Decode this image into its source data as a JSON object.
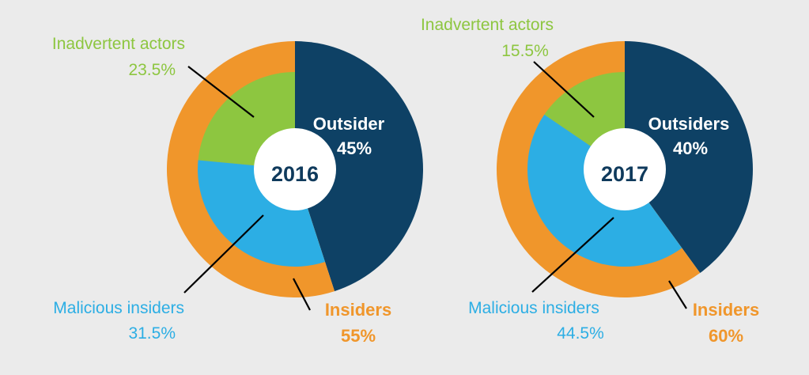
{
  "colors": {
    "background": "#ebebeb",
    "outsider": "#0e4165",
    "insider": "#f0962b",
    "inadvertent": "#8dc640",
    "malicious": "#2caee4",
    "center_text": "#0f3a5c"
  },
  "chart_data": [
    {
      "type": "pie",
      "title": "2016",
      "rings": {
        "outer": [
          {
            "name": "Outsider",
            "value": 45,
            "label": "Outsider",
            "pct": "45%",
            "color": "#0e4165"
          },
          {
            "name": "Insiders",
            "value": 55,
            "label": "Insiders",
            "pct": "55%",
            "color": "#f0962b"
          }
        ],
        "inner": [
          {
            "name": "Inadvertent actors",
            "value": 23.5,
            "label": "Inadvertent actors",
            "pct": "23.5%",
            "color": "#8dc640"
          },
          {
            "name": "Malicious insiders",
            "value": 31.5,
            "label": "Malicious insiders",
            "pct": "31.5%",
            "color": "#2caee4"
          }
        ]
      }
    },
    {
      "type": "pie",
      "title": "2017",
      "rings": {
        "outer": [
          {
            "name": "Outsiders",
            "value": 40,
            "label": "Outsiders",
            "pct": "40%",
            "color": "#0e4165"
          },
          {
            "name": "Insiders",
            "value": 60,
            "label": "Insiders",
            "pct": "60%",
            "color": "#f0962b"
          }
        ],
        "inner": [
          {
            "name": "Inadvertent actors",
            "value": 15.5,
            "label": "Inadvertent actors",
            "pct": "15.5%",
            "color": "#8dc640"
          },
          {
            "name": "Malicious insiders",
            "value": 44.5,
            "label": "Malicious insiders",
            "pct": "44.5%",
            "color": "#2caee4"
          }
        ]
      }
    }
  ]
}
